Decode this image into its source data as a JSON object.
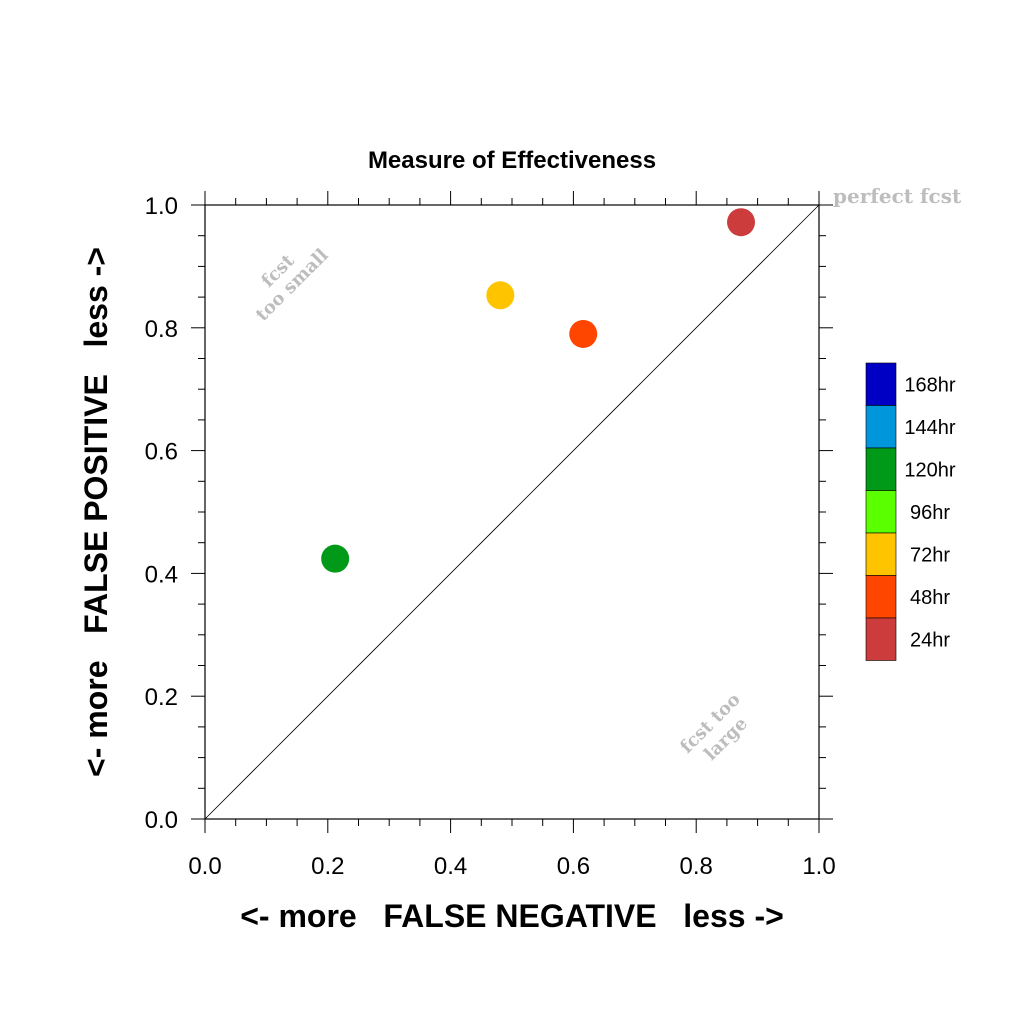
{
  "chart_data": {
    "type": "scatter",
    "title": "Measure of Effectiveness",
    "xlabel": "<- more   FALSE NEGATIVE   less ->",
    "ylabel": "<- more   FALSE POSITIVE   less ->",
    "xlim": [
      0.0,
      1.0
    ],
    "ylim": [
      0.0,
      1.0
    ],
    "xticks": [
      "0.0",
      "0.2",
      "0.4",
      "0.6",
      "0.8",
      "1.0"
    ],
    "yticks": [
      "0.0",
      "0.2",
      "0.4",
      "0.6",
      "0.8",
      "1.0"
    ],
    "grid": false,
    "diagonal_reference": true,
    "annotations": {
      "perfect": "perfect fcst",
      "too_small_line1": "fcst",
      "too_small_line2": "too small",
      "too_large_line1": "fcst too",
      "too_large_line2": "large"
    },
    "legend": {
      "position": "right",
      "entries": [
        {
          "label": "168hr",
          "color": "#0000c4"
        },
        {
          "label": "144hr",
          "color": "#0096dc"
        },
        {
          "label": "120hr",
          "color": "#009a18"
        },
        {
          "label": "96hr",
          "color": "#5aff00"
        },
        {
          "label": "72hr",
          "color": "#ffc400"
        },
        {
          "label": "48hr",
          "color": "#ff4600"
        },
        {
          "label": "24hr",
          "color": "#cc3c3c"
        }
      ]
    },
    "points": [
      {
        "lead": "24hr",
        "x": 0.873,
        "y": 0.972,
        "color": "#cc3c3c"
      },
      {
        "lead": "48hr",
        "x": 0.616,
        "y": 0.79,
        "color": "#ff4600"
      },
      {
        "lead": "72hr",
        "x": 0.481,
        "y": 0.853,
        "color": "#ffc400"
      },
      {
        "lead": "120hr",
        "x": 0.212,
        "y": 0.424,
        "color": "#009a18"
      }
    ]
  }
}
